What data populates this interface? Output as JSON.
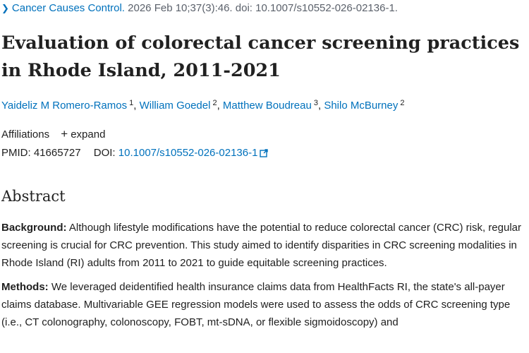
{
  "citation": {
    "journal": "Cancer Causes Control.",
    "details": "2026 Feb 10;37(3):46. doi: 10.1007/s10552-026-02136-1."
  },
  "article": {
    "title": "Evaluation of colorectal cancer screening practices in Rhode Island, 2011-2021"
  },
  "authors": [
    {
      "name": "Yaideliz M Romero-Ramos",
      "sup": "1"
    },
    {
      "name": "William Goedel",
      "sup": "2"
    },
    {
      "name": "Matthew Boudreau",
      "sup": "3"
    },
    {
      "name": "Shilo McBurney",
      "sup": "2"
    }
  ],
  "affiliations": {
    "label": "Affiliations",
    "expand_label": "expand"
  },
  "identifiers": {
    "pmid_label": "PMID:",
    "pmid": "41665727",
    "doi_label": "DOI:",
    "doi": "10.1007/s10552-026-02136-1"
  },
  "abstract": {
    "heading": "Abstract",
    "background_label": "Background:",
    "background_text": " Although lifestyle modifications have the potential to reduce colorectal cancer (CRC) risk, regular screening is crucial for CRC prevention. This study aimed to identify disparities in CRC screening modalities in Rhode Island (RI) adults from 2011 to 2021 to guide equitable screening practices.",
    "methods_label": "Methods:",
    "methods_text": " We leveraged deidentified health insurance claims data from HealthFacts RI, the state's all-payer claims database. Multivariable GEE regression models were used to assess the odds of CRC screening type (i.e., CT colonography, colonoscopy, FOBT, mt-sDNA, or flexible sigmoidoscopy) and"
  },
  "colors": {
    "link": "#0071bc",
    "text": "#212121",
    "muted": "#5b616b"
  }
}
